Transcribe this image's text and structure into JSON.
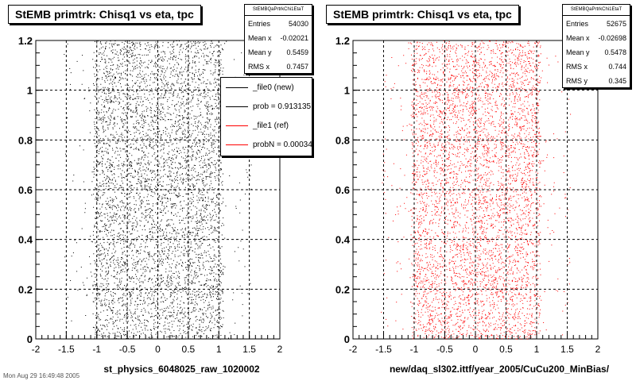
{
  "footer": "Mon Aug 29 16:49:48 2005",
  "chart_data": [
    {
      "type": "scatter",
      "title": "StEMB primtrk: Chisq1 vs eta, tpc",
      "xlabel": "st_physics_6048025_raw_1020002",
      "ylabel": "",
      "xlim": [
        -2,
        2
      ],
      "ylim": [
        0,
        1.2
      ],
      "x_ticks": [
        "-2",
        "-1.5",
        "-1",
        "-0.5",
        "0",
        "0.5",
        "1",
        "1.5",
        "2"
      ],
      "y_ticks": [
        "0",
        "0.2",
        "0.4",
        "0.6",
        "0.8",
        "1",
        "1.2"
      ],
      "grid": true,
      "point_color": "#000000",
      "eta_range": [
        -1.05,
        1.05
      ],
      "sparse_range": [
        -1.55,
        1.55
      ],
      "stats": {
        "name": "StEMBQaPrtrkChi1EtaT",
        "rows": [
          {
            "label": "Entries",
            "value": "54030"
          },
          {
            "label": "Mean x",
            "value": "-0.02021"
          },
          {
            "label": "Mean y",
            "value": "0.5459"
          },
          {
            "label": "RMS x",
            "value": "0.7457"
          }
        ]
      },
      "legend": [
        {
          "label": "_file0 (new)",
          "color": "#000000"
        },
        {
          "label": "prob = 0.913135",
          "color": "#000000"
        },
        {
          "label": "_file1 (ref)",
          "color": "#ff0000"
        },
        {
          "label": "probN = 0.00034",
          "color": "#ff0000"
        }
      ]
    },
    {
      "type": "scatter",
      "title": "StEMB primtrk: Chisq1 vs eta, tpc",
      "xlabel": "new/daq_sl302.ittf/year_2005/CuCu200_MinBias/",
      "ylabel": "",
      "xlim": [
        -2,
        2
      ],
      "ylim": [
        0,
        1.2
      ],
      "x_ticks": [
        "-2",
        "-1.5",
        "-1",
        "-0.5",
        "0",
        "0.5",
        "1",
        "1.5",
        "2"
      ],
      "y_ticks": [
        "0",
        "0.2",
        "0.4",
        "0.6",
        "0.8",
        "1",
        "1.2"
      ],
      "grid": true,
      "point_color": "#ff0000",
      "eta_range": [
        -1.05,
        1.05
      ],
      "sparse_range": [
        -1.55,
        1.55
      ],
      "stats": {
        "name": "StEMBQaPrtrkChi1EtaT",
        "rows": [
          {
            "label": "Entries",
            "value": "52675"
          },
          {
            "label": "Mean x",
            "value": "-0.02698"
          },
          {
            "label": "Mean y",
            "value": "0.5478"
          },
          {
            "label": "RMS x",
            "value": "0.744"
          },
          {
            "label": "RMS y",
            "value": "0.345"
          }
        ]
      }
    }
  ]
}
